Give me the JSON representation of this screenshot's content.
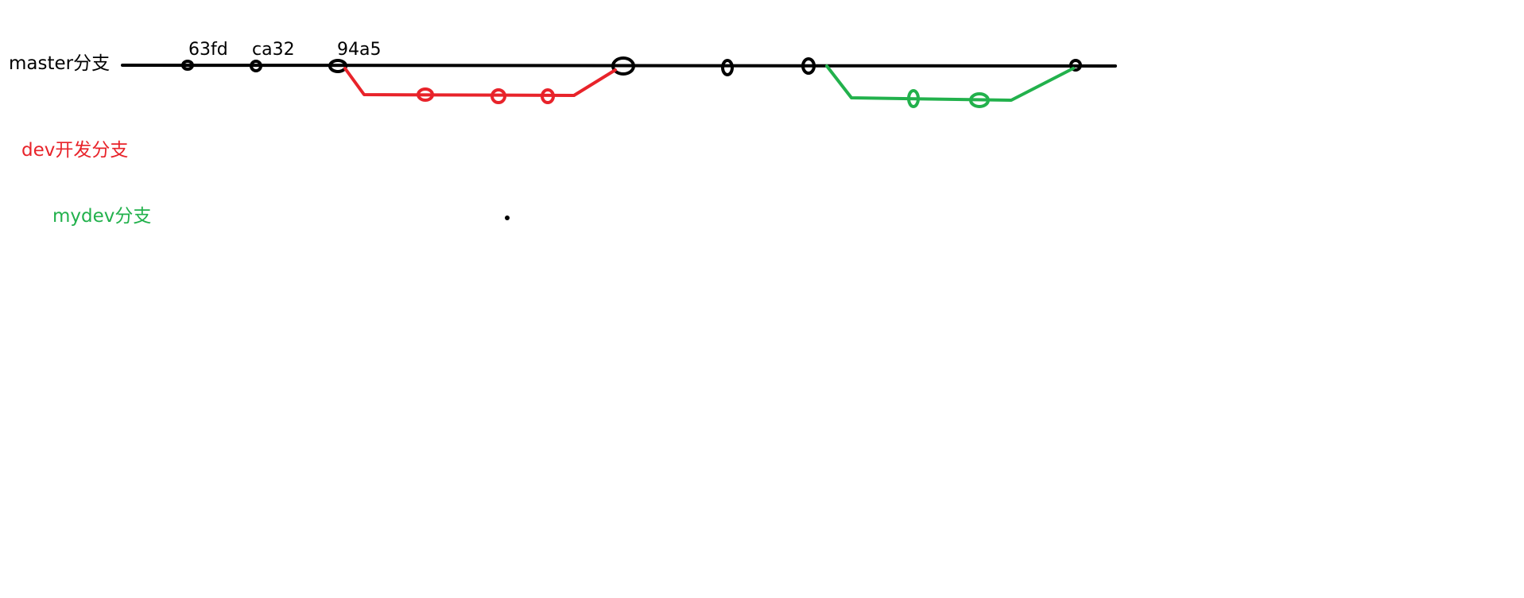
{
  "branches": {
    "master": {
      "label": "master分支",
      "color": "#000000",
      "commits": [
        "63fd",
        "ca32",
        "94a5"
      ]
    },
    "dev": {
      "label": "dev开发分支",
      "color": "#e8232a"
    },
    "mydev": {
      "label": "mydev分支",
      "color": "#22b14c"
    }
  }
}
